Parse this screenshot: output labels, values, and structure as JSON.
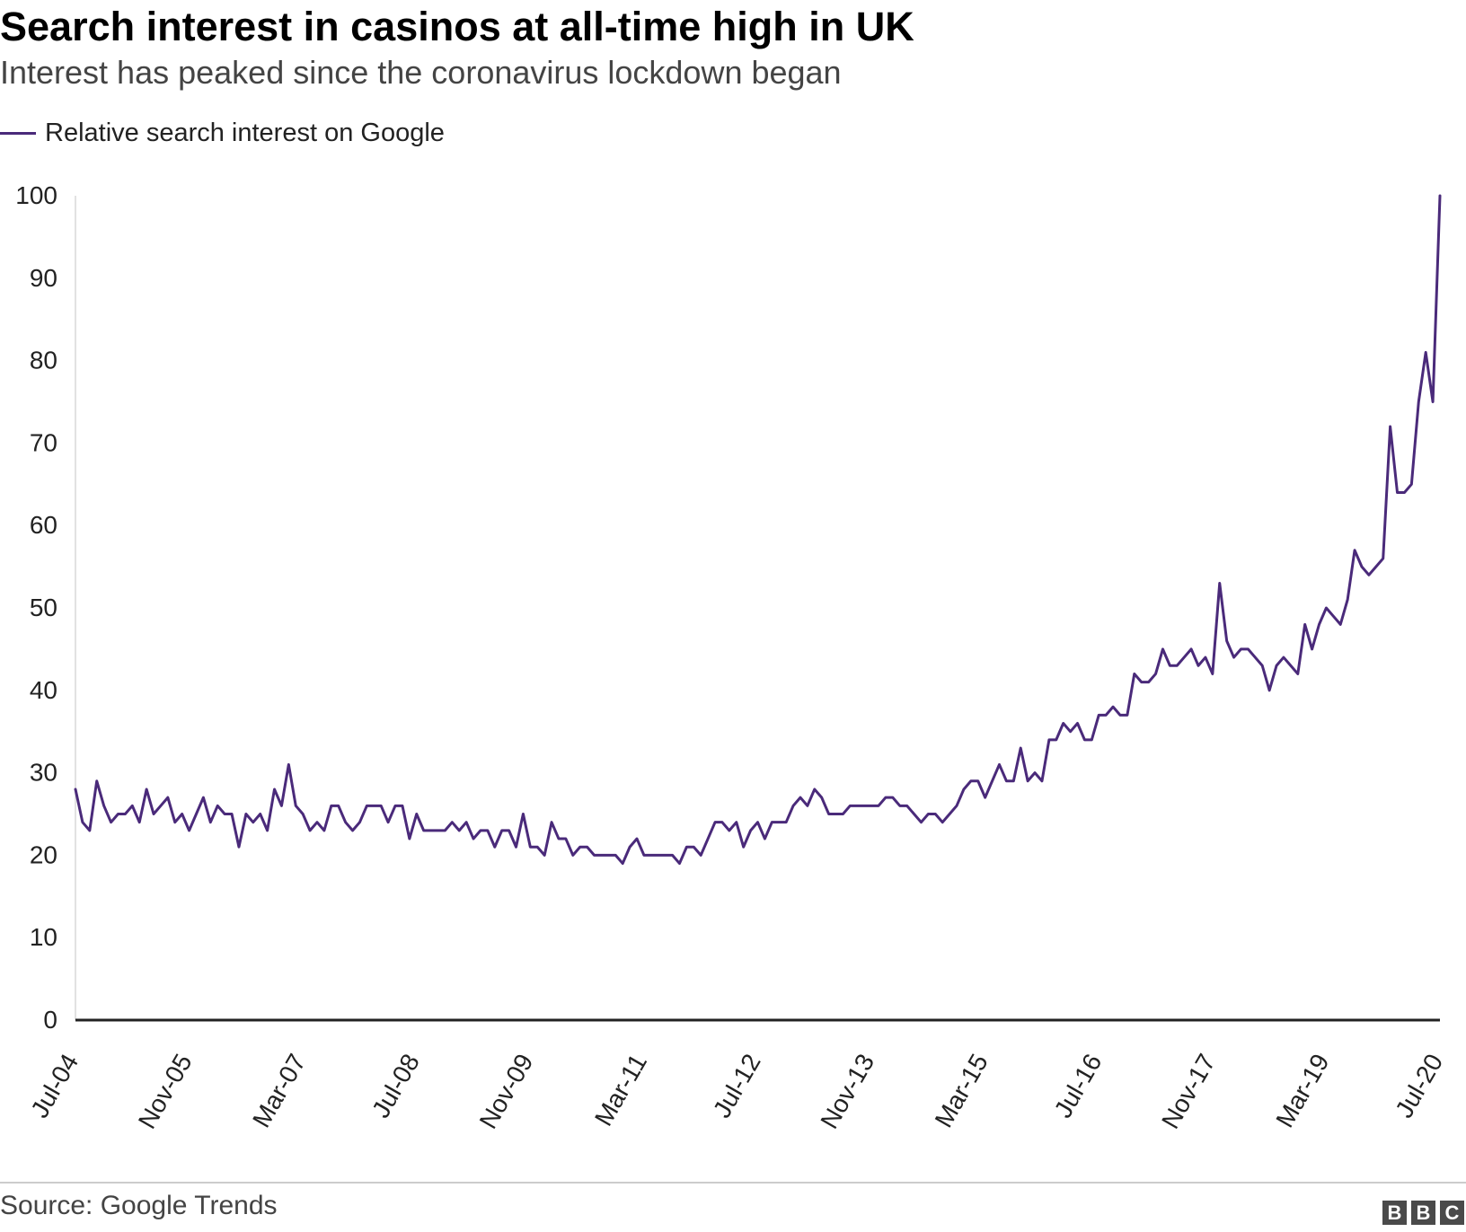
{
  "title": "Search interest in casinos at all-time high in UK",
  "subtitle": "Interest has peaked since the coronavirus lockdown began",
  "legend": {
    "label": "Relative search interest on Google",
    "color": "#4a2a7a"
  },
  "source": "Source: Google Trends",
  "logo": [
    "B",
    "B",
    "C"
  ],
  "chart_data": {
    "type": "line",
    "title": "Search interest in casinos at all-time high in UK",
    "subtitle": "Interest has peaked since the coronavirus lockdown began",
    "xlabel": "",
    "ylabel": "",
    "ylim": [
      0,
      100
    ],
    "yticks": [
      0,
      10,
      20,
      30,
      40,
      50,
      60,
      70,
      80,
      90,
      100
    ],
    "x_tick_labels": [
      "Jul-04",
      "Nov-05",
      "Mar-07",
      "Jul-08",
      "Nov-09",
      "Mar-11",
      "Jul-12",
      "Nov-13",
      "Mar-15",
      "Jul-16",
      "Nov-17",
      "Mar-19",
      "Jul-20"
    ],
    "x_frequency": "monthly",
    "x_start": "Jul-04",
    "x_end": "Jul-20",
    "grid": false,
    "legend_position": "top-left",
    "series": [
      {
        "name": "Relative search interest on Google",
        "color": "#4a2a7a",
        "values": [
          28,
          24,
          23,
          29,
          26,
          24,
          25,
          25,
          26,
          24,
          28,
          25,
          26,
          27,
          24,
          25,
          23,
          25,
          27,
          24,
          26,
          25,
          25,
          21,
          25,
          24,
          25,
          23,
          28,
          26,
          31,
          26,
          25,
          23,
          24,
          23,
          26,
          26,
          24,
          23,
          24,
          26,
          26,
          26,
          24,
          26,
          26,
          22,
          25,
          23,
          23,
          23,
          23,
          24,
          23,
          24,
          22,
          23,
          23,
          21,
          23,
          23,
          21,
          25,
          21,
          21,
          20,
          24,
          22,
          22,
          20,
          21,
          21,
          20,
          20,
          20,
          20,
          19,
          21,
          22,
          20,
          20,
          20,
          20,
          20,
          19,
          21,
          21,
          20,
          22,
          24,
          24,
          23,
          24,
          21,
          23,
          24,
          22,
          24,
          24,
          24,
          26,
          27,
          26,
          28,
          27,
          25,
          25,
          25,
          26,
          26,
          26,
          26,
          26,
          27,
          27,
          26,
          26,
          25,
          24,
          25,
          25,
          24,
          25,
          26,
          28,
          29,
          29,
          27,
          29,
          31,
          29,
          29,
          33,
          29,
          30,
          29,
          34,
          34,
          36,
          35,
          36,
          34,
          34,
          37,
          37,
          38,
          37,
          37,
          42,
          41,
          41,
          42,
          45,
          43,
          43,
          44,
          45,
          43,
          44,
          42,
          53,
          46,
          44,
          45,
          45,
          44,
          43,
          40,
          43,
          44,
          43,
          42,
          48,
          45,
          48,
          50,
          49,
          48,
          51,
          57,
          55,
          54,
          55,
          56,
          72,
          64,
          64,
          65,
          75,
          81,
          75,
          100
        ]
      }
    ]
  }
}
